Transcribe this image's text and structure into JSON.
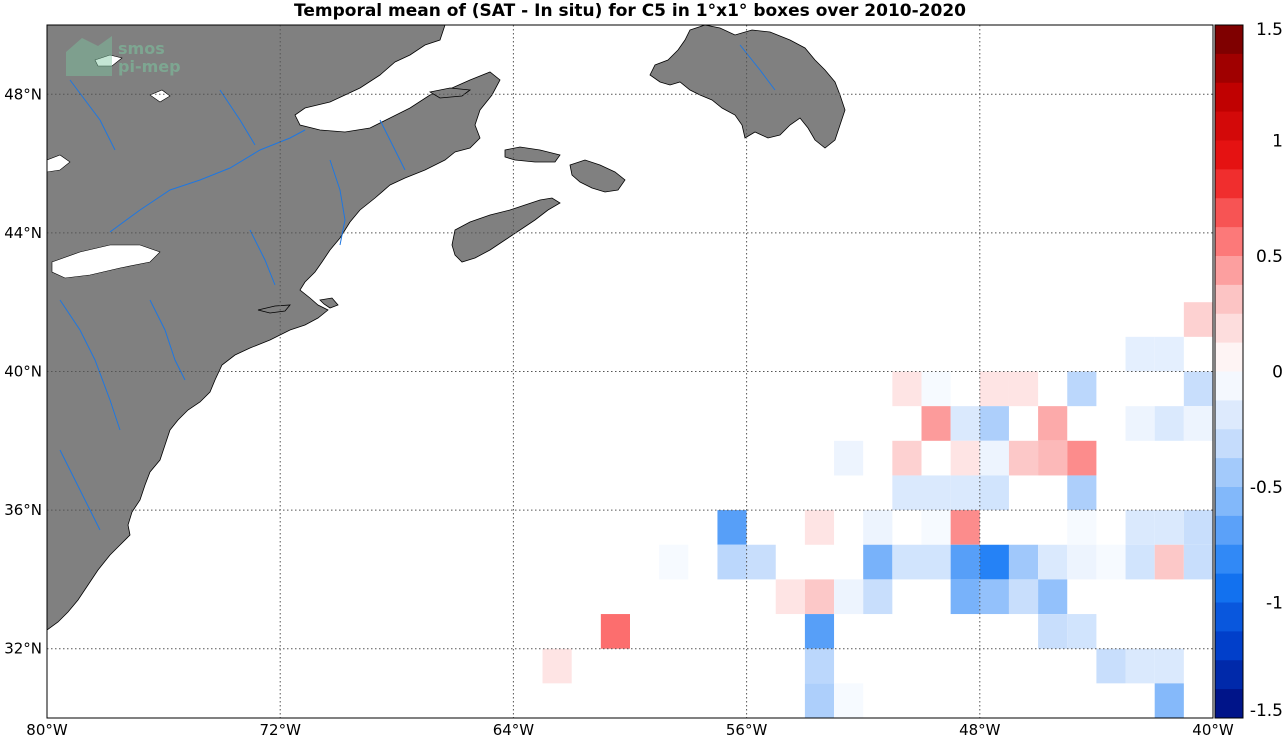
{
  "title": "Temporal mean of (SAT - In situ) for C5 in 1°x1° boxes over 2010-2020",
  "watermark": {
    "line1": "smos",
    "line2": "pi-mep"
  },
  "colors": {
    "land": "#808080",
    "river": "#1f77e0",
    "ocean": "#ffffff"
  },
  "map": {
    "lon_range": [
      -80,
      -40
    ],
    "lat_range": [
      30,
      50
    ],
    "lon_ticks": [
      {
        "value": -80,
        "label": "80°W"
      },
      {
        "value": -72,
        "label": "72°W"
      },
      {
        "value": -64,
        "label": "64°W"
      },
      {
        "value": -56,
        "label": "56°W"
      },
      {
        "value": -48,
        "label": "48°W"
      },
      {
        "value": -40,
        "label": "40°W"
      }
    ],
    "lat_ticks": [
      {
        "value": 32,
        "label": "32°N"
      },
      {
        "value": 36,
        "label": "36°N"
      },
      {
        "value": 40,
        "label": "40°N"
      },
      {
        "value": 44,
        "label": "44°N"
      },
      {
        "value": 48,
        "label": "48°N"
      }
    ],
    "grid": true
  },
  "colorbar": {
    "range": [
      -1.5,
      1.5
    ],
    "levels": 24,
    "ticks": [
      {
        "value": 1.5,
        "label": "1.5"
      },
      {
        "value": 1,
        "label": "1"
      },
      {
        "value": 0.5,
        "label": "0.5"
      },
      {
        "value": 0,
        "label": "0"
      },
      {
        "value": -0.5,
        "label": "-0.5"
      },
      {
        "value": -1,
        "label": "-1"
      },
      {
        "value": -1.5,
        "label": "-1.5"
      }
    ]
  },
  "chart_data": {
    "type": "heatmap",
    "title": "Temporal mean of (SAT - In situ) for C5 in 1°x1° boxes over 2010-2020",
    "xlabel": "",
    "ylabel": "",
    "x_unit": "longitude (°E, negative = °W)",
    "y_unit": "latitude (°N)",
    "xlim": [
      -80,
      -40
    ],
    "ylim": [
      30,
      50
    ],
    "cell_size_deg": 1,
    "value_range": [
      -1.5,
      1.5
    ],
    "cells": [
      {
        "lon": -41,
        "lat": 41,
        "value": 0.25
      },
      {
        "lon": -43,
        "lat": 40,
        "value": -0.15
      },
      {
        "lon": -42,
        "lat": 40,
        "value": -0.15
      },
      {
        "lon": -51,
        "lat": 39,
        "value": 0.15
      },
      {
        "lon": -50,
        "lat": 39,
        "value": -0.05
      },
      {
        "lon": -48,
        "lat": 39,
        "value": 0.15
      },
      {
        "lon": -47,
        "lat": 39,
        "value": 0.15
      },
      {
        "lon": -45,
        "lat": 39,
        "value": -0.35
      },
      {
        "lon": -41,
        "lat": 39,
        "value": -0.3
      },
      {
        "lon": -39,
        "lat": 39,
        "value": -0.3
      },
      {
        "lon": -37,
        "lat": 39,
        "value": 0.3
      },
      {
        "lon": -36,
        "lat": 39,
        "value": 0.35
      },
      {
        "lon": -34,
        "lat": 39,
        "value": -0.05
      },
      {
        "lon": -33,
        "lat": 39,
        "value": 0.4
      },
      {
        "lon": -32,
        "lat": 39,
        "value": 0.15
      },
      {
        "lon": -50,
        "lat": 38,
        "value": 0.45
      },
      {
        "lon": -49,
        "lat": 38,
        "value": -0.2
      },
      {
        "lon": -48,
        "lat": 38,
        "value": -0.4
      },
      {
        "lon": -46,
        "lat": 38,
        "value": 0.4
      },
      {
        "lon": -43,
        "lat": 38,
        "value": -0.1
      },
      {
        "lon": -42,
        "lat": 38,
        "value": -0.2
      },
      {
        "lon": -41,
        "lat": 38,
        "value": -0.1
      },
      {
        "lon": -40,
        "lat": 38,
        "value": 0.35
      },
      {
        "lon": -39,
        "lat": 38,
        "value": 0.35
      },
      {
        "lon": -37,
        "lat": 38,
        "value": 0.15
      },
      {
        "lon": -36,
        "lat": 38,
        "value": 0.25
      },
      {
        "lon": -35,
        "lat": 38,
        "value": 0.25
      },
      {
        "lon": -32,
        "lat": 38,
        "value": -0.2
      },
      {
        "lon": -53,
        "lat": 37,
        "value": -0.1
      },
      {
        "lon": -51,
        "lat": 37,
        "value": 0.25
      },
      {
        "lon": -49,
        "lat": 37,
        "value": 0.15
      },
      {
        "lon": -48,
        "lat": 37,
        "value": -0.1
      },
      {
        "lon": -47,
        "lat": 37,
        "value": 0.3
      },
      {
        "lon": -46,
        "lat": 37,
        "value": 0.35
      },
      {
        "lon": -45,
        "lat": 37,
        "value": 0.5
      },
      {
        "lon": -38,
        "lat": 37,
        "value": 0.4
      },
      {
        "lon": -34,
        "lat": 37,
        "value": -0.3
      },
      {
        "lon": -33,
        "lat": 37,
        "value": -0.1
      },
      {
        "lon": -51,
        "lat": 36,
        "value": -0.2
      },
      {
        "lon": -50,
        "lat": 36,
        "value": -0.2
      },
      {
        "lon": -49,
        "lat": 36,
        "value": -0.2
      },
      {
        "lon": -48,
        "lat": 36,
        "value": -0.25
      },
      {
        "lon": -45,
        "lat": 36,
        "value": -0.4
      },
      {
        "lon": -39,
        "lat": 36,
        "value": 0.15
      },
      {
        "lon": -37,
        "lat": 36,
        "value": 0.15
      },
      {
        "lon": -36,
        "lat": 36,
        "value": 0.6
      },
      {
        "lon": -34,
        "lat": 36,
        "value": -0.2
      },
      {
        "lon": -57,
        "lat": 35,
        "value": -0.7
      },
      {
        "lon": -54,
        "lat": 35,
        "value": 0.15
      },
      {
        "lon": -52,
        "lat": 35,
        "value": -0.1
      },
      {
        "lon": -50,
        "lat": 35,
        "value": -0.05
      },
      {
        "lon": -49,
        "lat": 35,
        "value": 0.5
      },
      {
        "lon": -45,
        "lat": 35,
        "value": -0.05
      },
      {
        "lon": -43,
        "lat": 35,
        "value": -0.2
      },
      {
        "lon": -42,
        "lat": 35,
        "value": -0.2
      },
      {
        "lon": -41,
        "lat": 35,
        "value": -0.3
      },
      {
        "lon": -40,
        "lat": 35,
        "value": -0.3
      },
      {
        "lon": -39,
        "lat": 35,
        "value": -0.2
      },
      {
        "lon": -38,
        "lat": 35,
        "value": -0.2
      },
      {
        "lon": -37,
        "lat": 35,
        "value": -0.4
      },
      {
        "lon": -36,
        "lat": 35,
        "value": -0.7
      },
      {
        "lon": -35,
        "lat": 35,
        "value": -0.7
      },
      {
        "lon": -59,
        "lat": 34,
        "value": -0.05
      },
      {
        "lon": -57,
        "lat": 34,
        "value": -0.35
      },
      {
        "lon": -56,
        "lat": 34,
        "value": -0.3
      },
      {
        "lon": -52,
        "lat": 34,
        "value": -0.6
      },
      {
        "lon": -51,
        "lat": 34,
        "value": -0.25
      },
      {
        "lon": -50,
        "lat": 34,
        "value": -0.25
      },
      {
        "lon": -49,
        "lat": 34,
        "value": -0.7
      },
      {
        "lon": -48,
        "lat": 34,
        "value": -0.85
      },
      {
        "lon": -47,
        "lat": 34,
        "value": -0.45
      },
      {
        "lon": -46,
        "lat": 34,
        "value": -0.2
      },
      {
        "lon": -45,
        "lat": 34,
        "value": -0.1
      },
      {
        "lon": -44,
        "lat": 34,
        "value": -0.05
      },
      {
        "lon": -43,
        "lat": 34,
        "value": -0.25
      },
      {
        "lon": -42,
        "lat": 34,
        "value": 0.3
      },
      {
        "lon": -41,
        "lat": 34,
        "value": -0.3
      },
      {
        "lon": -40,
        "lat": 34,
        "value": -0.15
      },
      {
        "lon": -32,
        "lat": 34,
        "value": -0.25
      },
      {
        "lon": -55,
        "lat": 33,
        "value": 0.15
      },
      {
        "lon": -54,
        "lat": 33,
        "value": 0.3
      },
      {
        "lon": -53,
        "lat": 33,
        "value": -0.1
      },
      {
        "lon": -52,
        "lat": 33,
        "value": -0.3
      },
      {
        "lon": -49,
        "lat": 33,
        "value": -0.6
      },
      {
        "lon": -48,
        "lat": 33,
        "value": -0.5
      },
      {
        "lon": -47,
        "lat": 33,
        "value": -0.3
      },
      {
        "lon": -46,
        "lat": 33,
        "value": -0.5
      },
      {
        "lon": -39,
        "lat": 33,
        "value": -0.55
      },
      {
        "lon": -37,
        "lat": 33,
        "value": -0.3
      },
      {
        "lon": -34,
        "lat": 33,
        "value": -0.05
      },
      {
        "lon": -61,
        "lat": 32,
        "value": 0.6
      },
      {
        "lon": -54,
        "lat": 32,
        "value": -0.7
      },
      {
        "lon": -46,
        "lat": 32,
        "value": -0.3
      },
      {
        "lon": -45,
        "lat": 32,
        "value": -0.25
      },
      {
        "lon": -63,
        "lat": 31,
        "value": 0.15
      },
      {
        "lon": -54,
        "lat": 31,
        "value": -0.35
      },
      {
        "lon": -44,
        "lat": 31,
        "value": -0.3
      },
      {
        "lon": -43,
        "lat": 31,
        "value": -0.2
      },
      {
        "lon": -42,
        "lat": 31,
        "value": -0.2
      },
      {
        "lon": -54,
        "lat": 30,
        "value": -0.4
      },
      {
        "lon": -53,
        "lat": 30,
        "value": -0.05
      },
      {
        "lon": -42,
        "lat": 30,
        "value": -0.55
      },
      {
        "lon": -40,
        "lat": 30,
        "value": 0.15
      },
      {
        "lon": -37,
        "lat": 30,
        "value": -0.25
      }
    ]
  }
}
